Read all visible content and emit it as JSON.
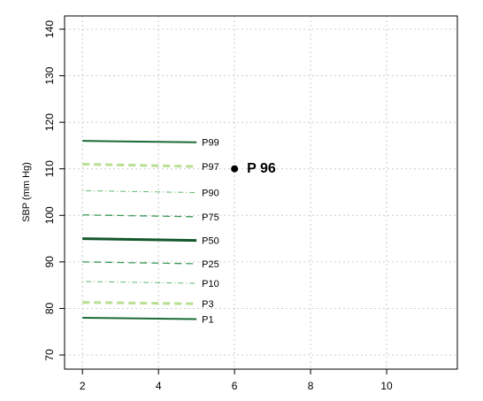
{
  "chart_data": {
    "type": "line",
    "y_label": "SBP (mm Hg)",
    "xlim": [
      1.53,
      11.86
    ],
    "ylim": [
      66.96,
      142.85
    ],
    "xticks": [
      2,
      4,
      6,
      8,
      10
    ],
    "yticks": [
      70,
      80,
      90,
      100,
      110,
      120,
      130,
      140
    ],
    "grid": true,
    "series": [
      {
        "name": "P99",
        "color": "#1b6b37",
        "dash": "solid",
        "width": 2,
        "x": [
          2,
          5
        ],
        "values": [
          116,
          115.7
        ]
      },
      {
        "name": "P97",
        "color": "#b8df92",
        "dash": "dashed",
        "width": 3,
        "x": [
          2,
          5
        ],
        "values": [
          111,
          110.5
        ]
      },
      {
        "name": "P90",
        "color": "#62b86f",
        "dash": "dotdash",
        "width": 1,
        "x": [
          2,
          5
        ],
        "values": [
          105.3,
          104.9
        ]
      },
      {
        "name": "P75",
        "color": "#3b9a58",
        "dash": "dashed",
        "width": 1.3,
        "x": [
          2,
          5
        ],
        "values": [
          100.1,
          99.7
        ]
      },
      {
        "name": "P50",
        "color": "#14572c",
        "dash": "solid",
        "width": 3,
        "x": [
          2,
          5
        ],
        "values": [
          95,
          94.6
        ]
      },
      {
        "name": "P25",
        "color": "#3b9a58",
        "dash": "dashed",
        "width": 1.3,
        "x": [
          2,
          5
        ],
        "values": [
          90,
          89.6
        ]
      },
      {
        "name": "P10",
        "color": "#62b86f",
        "dash": "dotdash",
        "width": 1,
        "x": [
          2,
          5
        ],
        "values": [
          85.8,
          85.4
        ]
      },
      {
        "name": "P3",
        "color": "#b8df92",
        "dash": "dashed",
        "width": 3,
        "x": [
          2,
          5
        ],
        "values": [
          81.3,
          81
        ]
      },
      {
        "name": "P1",
        "color": "#1b6b37",
        "dash": "solid",
        "width": 2,
        "x": [
          2,
          5
        ],
        "values": [
          78,
          77.7
        ]
      }
    ],
    "annotation": {
      "x": 6,
      "y": 110,
      "label": "P 96"
    }
  }
}
